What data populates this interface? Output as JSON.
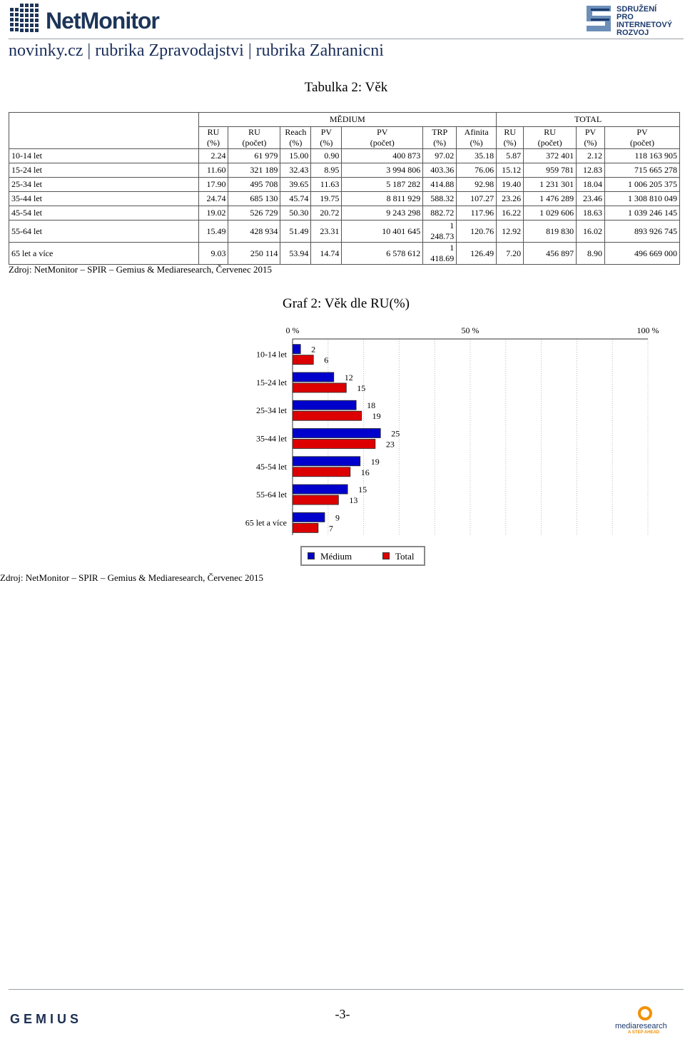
{
  "header": {
    "logo_text": "NetMonitor",
    "spir_lines": [
      "SDRUŽENÍ",
      "PRO INTERNETOVÝ",
      "ROZVOJ"
    ],
    "page_title": "novinky.cz | rubrika Zpravodajstvi | rubrika Zahranicni"
  },
  "table": {
    "title": "Tabulka 2: Věk",
    "group_medium": "MĚDIUM",
    "group_total": "TOTAL",
    "columns": [
      [
        "RU",
        "(%)"
      ],
      [
        "RU",
        "(počet)"
      ],
      [
        "Reach",
        "(%)"
      ],
      [
        "PV",
        "(%)"
      ],
      [
        "PV",
        "(počet)"
      ],
      [
        "TRP",
        "(%)"
      ],
      [
        "Afinita",
        "(%)"
      ],
      [
        "RU",
        "(%)"
      ],
      [
        "RU",
        "(počet)"
      ],
      [
        "PV",
        "(%)"
      ],
      [
        "PV",
        "(počet)"
      ]
    ],
    "rows": [
      {
        "label": "10-14 let",
        "cells": [
          "2.24",
          "61 979",
          "15.00",
          "0.90",
          "400 873",
          "97.02",
          "35.18",
          "5.87",
          "372 401",
          "2.12",
          "118 163 905"
        ]
      },
      {
        "label": "15-24 let",
        "cells": [
          "11.60",
          "321 189",
          "32.43",
          "8.95",
          "3 994 806",
          "403.36",
          "76.06",
          "15.12",
          "959 781",
          "12.83",
          "715 665 278"
        ]
      },
      {
        "label": "25-34 let",
        "cells": [
          "17.90",
          "495 708",
          "39.65",
          "11.63",
          "5 187 282",
          "414.88",
          "92.98",
          "19.40",
          "1 231 301",
          "18.04",
          "1 006 205 375"
        ]
      },
      {
        "label": "35-44 let",
        "cells": [
          "24.74",
          "685 130",
          "45.74",
          "19.75",
          "8 811 929",
          "588.32",
          "107.27",
          "23.26",
          "1 476 289",
          "23.46",
          "1 308 810 049"
        ]
      },
      {
        "label": "45-54 let",
        "cells": [
          "19.02",
          "526 729",
          "50.30",
          "20.72",
          "9 243 298",
          "882.72",
          "117.96",
          "16.22",
          "1 029 606",
          "18.63",
          "1 039 246 145"
        ]
      },
      {
        "label": "55-64 let",
        "cells": [
          "15.49",
          "428 934",
          "51.49",
          "23.31",
          "10 401 645",
          "1 248.73",
          "120.76",
          "12.92",
          "819 830",
          "16.02",
          "893 926 745"
        ]
      },
      {
        "label": "65 let a více",
        "cells": [
          "9.03",
          "250 114",
          "53.94",
          "14.74",
          "6 578 612",
          "1 418.69",
          "126.49",
          "7.20",
          "456 897",
          "8.90",
          "496 669 000"
        ]
      }
    ],
    "source": "Zdroj: NetMonitor – SPIR – Gemius & Mediaresearch, Červenec 2015"
  },
  "chart_data": {
    "type": "bar",
    "title": "Graf 2: Věk dle RU(%)",
    "orientation": "horizontal",
    "categories": [
      "10-14 let",
      "15-24 let",
      "25-34 let",
      "35-44 let",
      "45-54 let",
      "55-64 let",
      "65 let a více"
    ],
    "series": [
      {
        "name": "Médium",
        "color": "#0000cc",
        "values": [
          2.24,
          11.6,
          17.9,
          24.74,
          19.02,
          15.49,
          9.03
        ],
        "labels": [
          "2",
          "12",
          "18",
          "25",
          "19",
          "15",
          "9"
        ]
      },
      {
        "name": "Total",
        "color": "#dd0000",
        "values": [
          5.87,
          15.12,
          19.4,
          23.26,
          16.22,
          12.92,
          7.2
        ],
        "labels": [
          "6",
          "15",
          "19",
          "23",
          "16",
          "13",
          "7"
        ]
      }
    ],
    "xlim": [
      0,
      100
    ],
    "xticks": [
      "0 %",
      "50 %",
      "100 %"
    ],
    "grid": true,
    "legend": "bottom-center"
  },
  "chart_source": "Zdroj: NetMonitor – SPIR – Gemius & Mediaresearch, Červenec 2015",
  "footer": {
    "gemius": "GEMIUS",
    "page_number": "-3-",
    "mr_text": "mediaresearch",
    "mr_tagline": "A STEP AHEAD"
  }
}
